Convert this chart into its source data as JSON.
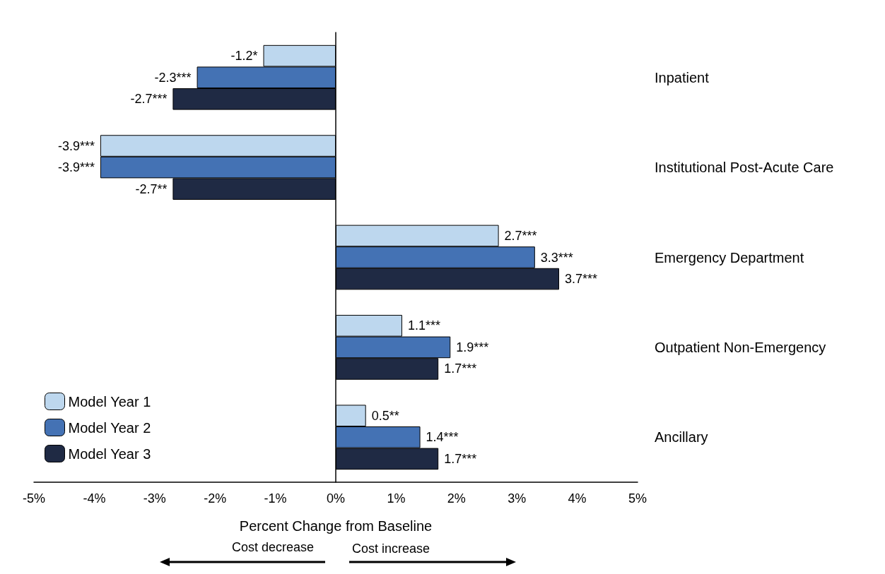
{
  "chart_data": {
    "type": "bar",
    "orientation": "horizontal",
    "xlabel": "Percent Change from Baseline",
    "categories": [
      "Inpatient",
      "Institutional Post-Acute Care",
      "Emergency Department",
      "Outpatient Non-Emergency",
      "Ancillary"
    ],
    "series": [
      {
        "name": "Model Year 1",
        "color": "#bdd7ee",
        "values": [
          -1.2,
          -3.9,
          2.7,
          1.1,
          0.5
        ],
        "value_labels": [
          "-1.2*",
          "-3.9***",
          "2.7***",
          "1.1***",
          "0.5**"
        ]
      },
      {
        "name": "Model Year 2",
        "color": "#4472b4",
        "values": [
          -2.3,
          -3.9,
          3.3,
          1.9,
          1.4
        ],
        "value_labels": [
          "-2.3***",
          "-3.9***",
          "3.3***",
          "1.9***",
          "1.4***"
        ]
      },
      {
        "name": "Model Year 3",
        "color": "#1f2a44",
        "values": [
          -2.7,
          -2.7,
          3.7,
          1.7,
          1.7
        ],
        "value_labels": [
          "-2.7***",
          "-2.7**",
          "3.7***",
          "1.7***",
          "1.7***"
        ]
      }
    ],
    "xlim": [
      -5,
      5
    ],
    "xticks": [
      {
        "value": -5,
        "label": "-5%"
      },
      {
        "value": -4,
        "label": "-4%"
      },
      {
        "value": -3,
        "label": "-3%"
      },
      {
        "value": -2,
        "label": "-2%"
      },
      {
        "value": -1,
        "label": "-1%"
      },
      {
        "value": 0,
        "label": "0%"
      },
      {
        "value": 1,
        "label": "1%"
      },
      {
        "value": 2,
        "label": "2%"
      },
      {
        "value": 3,
        "label": "3%"
      },
      {
        "value": 4,
        "label": "4%"
      },
      {
        "value": 5,
        "label": "5%"
      }
    ],
    "annotations": [
      "Cost decrease",
      "Cost increase"
    ],
    "legend": "bottom left"
  }
}
